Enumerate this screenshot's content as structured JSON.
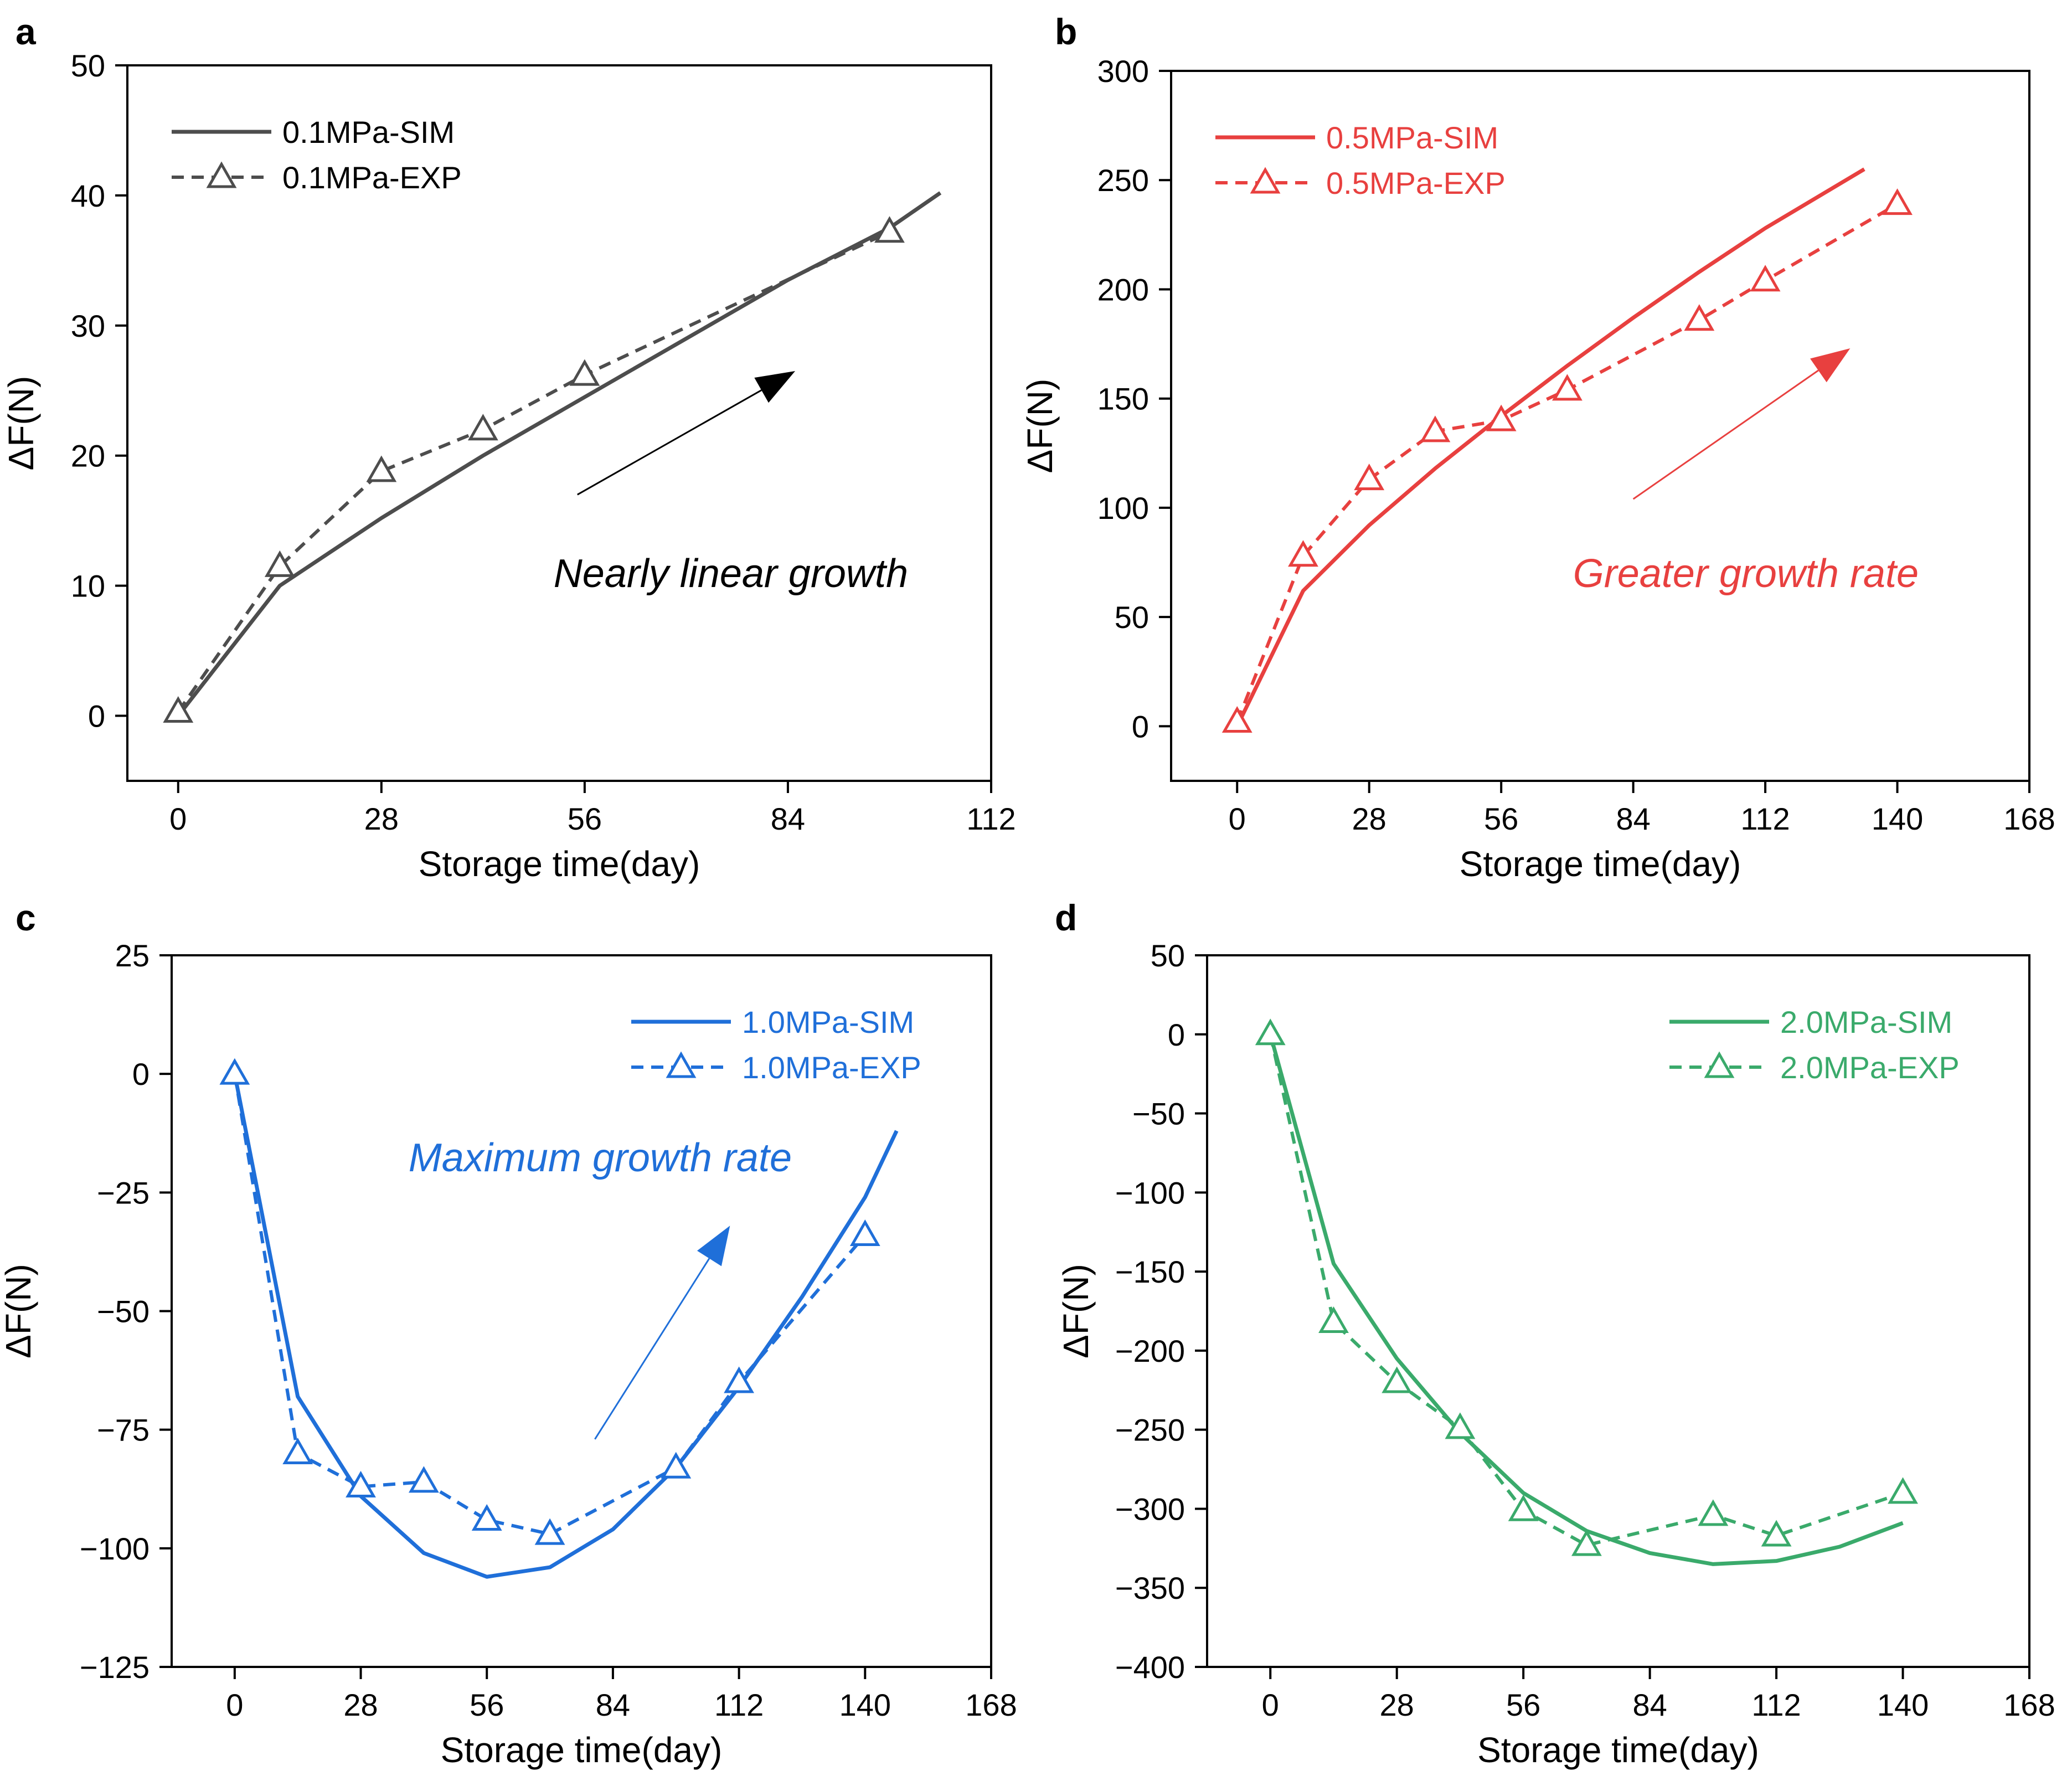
{
  "chart_data": [
    {
      "panel": "a",
      "type": "line",
      "xlabel": "Storage time(day)",
      "ylabel": "ΔF(N)",
      "xlim": [
        -7,
        112
      ],
      "ylim": [
        -5,
        50
      ],
      "xticks": [
        0,
        28,
        56,
        84,
        112
      ],
      "yticks": [
        0,
        10,
        20,
        30,
        40,
        50
      ],
      "ytick_labels": [
        "0",
        "10",
        "20",
        "30",
        "40",
        "50"
      ],
      "color": "#4d4d4d",
      "legend_position": "top-left",
      "series": [
        {
          "name": "0.1MPa-SIM",
          "style": "solid",
          "x": [
            0,
            14,
            28,
            42,
            56,
            70,
            84,
            98,
            105
          ],
          "y": [
            0,
            10,
            15.2,
            20,
            24.5,
            29,
            33.5,
            37.5,
            40.2
          ]
        },
        {
          "name": "0.1MPa-EXP",
          "style": "dashed-triangle",
          "x": [
            0,
            14,
            28,
            42,
            56,
            98
          ],
          "y": [
            0.3,
            11.5,
            18.8,
            22,
            26.2,
            37.2
          ]
        }
      ],
      "annotation": {
        "text": "Nearly linear growth",
        "arrow_from": [
          55,
          17
        ],
        "arrow_to": [
          85,
          26.5
        ]
      }
    },
    {
      "panel": "b",
      "type": "line",
      "xlabel": "Storage time(day)",
      "ylabel": "ΔF(N)",
      "xlim": [
        -14,
        168
      ],
      "ylim": [
        -25,
        300
      ],
      "xticks": [
        0,
        28,
        56,
        84,
        112,
        140,
        168
      ],
      "yticks": [
        0,
        50,
        100,
        150,
        200,
        250,
        300
      ],
      "ytick_labels": [
        "0",
        "50",
        "100",
        "150",
        "200",
        "250",
        "300"
      ],
      "color": "#e8403f",
      "legend_position": "top-left",
      "series": [
        {
          "name": "0.5MPa-SIM",
          "style": "solid",
          "x": [
            0,
            14,
            28,
            42,
            56,
            70,
            84,
            98,
            112,
            126,
            133
          ],
          "y": [
            0,
            62,
            92,
            118,
            142,
            165,
            187,
            208,
            228,
            246,
            255
          ]
        },
        {
          "name": "0.5MPa-EXP",
          "style": "dashed-triangle",
          "x": [
            0,
            14,
            28,
            42,
            56,
            70,
            98,
            112,
            140
          ],
          "y": [
            2,
            78,
            113,
            135,
            140,
            154,
            186,
            204,
            239
          ]
        }
      ],
      "annotation": {
        "text": "Greater growth rate",
        "arrow_from": [
          84,
          104
        ],
        "arrow_to": [
          130,
          173
        ]
      }
    },
    {
      "panel": "c",
      "type": "line",
      "xlabel": "Storage time(day)",
      "ylabel": "ΔF(N)",
      "xlim": [
        -14,
        168
      ],
      "ylim": [
        -125,
        25
      ],
      "xticks": [
        0,
        28,
        56,
        84,
        112,
        140,
        168
      ],
      "yticks": [
        25,
        0,
        -25,
        -50,
        -75,
        -100,
        -125
      ],
      "ytick_labels": [
        "25",
        "0",
        "−25",
        "−50",
        "−75",
        "−100",
        "−125"
      ],
      "color": "#1f6fd9",
      "legend_position": "top-right",
      "series": [
        {
          "name": "1.0MPa-SIM",
          "style": "solid",
          "x": [
            0,
            14,
            28,
            42,
            56,
            70,
            84,
            98,
            112,
            126,
            140,
            147
          ],
          "y": [
            0,
            -68,
            -89,
            -101,
            -106,
            -104,
            -96,
            -83,
            -66,
            -47,
            -26,
            -12
          ]
        },
        {
          "name": "1.0MPa-EXP",
          "style": "dashed-triangle",
          "x": [
            0,
            14,
            28,
            42,
            56,
            70,
            98,
            112,
            140
          ],
          "y": [
            0,
            -80,
            -87,
            -86,
            -94,
            -97,
            -83,
            -65,
            -34
          ]
        }
      ],
      "annotation": {
        "text": "Maximum growth rate",
        "arrow_from": [
          80,
          -77
        ],
        "arrow_to": [
          110,
          -32
        ]
      }
    },
    {
      "panel": "d",
      "type": "line",
      "xlabel": "Storage time(day)",
      "ylabel": "ΔF(N)",
      "xlim": [
        -14,
        168
      ],
      "ylim": [
        -400,
        50
      ],
      "xticks": [
        0,
        28,
        56,
        84,
        112,
        140,
        168
      ],
      "yticks": [
        50,
        0,
        -50,
        -100,
        -150,
        -200,
        -250,
        -300,
        -350,
        -400
      ],
      "ytick_labels": [
        "50",
        "0",
        "−50",
        "−100",
        "−150",
        "−200",
        "−250",
        "−300",
        "−350",
        "−400"
      ],
      "color": "#3aaa6b",
      "legend_position": "top-right",
      "series": [
        {
          "name": "2.0MPa-SIM",
          "style": "solid",
          "x": [
            0,
            14,
            28,
            42,
            56,
            70,
            84,
            98,
            112,
            126,
            140
          ],
          "y": [
            0,
            -145,
            -205,
            -252,
            -290,
            -314,
            -328,
            -335,
            -333,
            -324,
            -309
          ]
        },
        {
          "name": "2.0MPa-EXP",
          "style": "dashed-triangle",
          "x": [
            0,
            14,
            28,
            42,
            56,
            70,
            98,
            112,
            140
          ],
          "y": [
            0,
            -182,
            -220,
            -249,
            -301,
            -323,
            -304,
            -317,
            -290
          ]
        }
      ]
    }
  ]
}
